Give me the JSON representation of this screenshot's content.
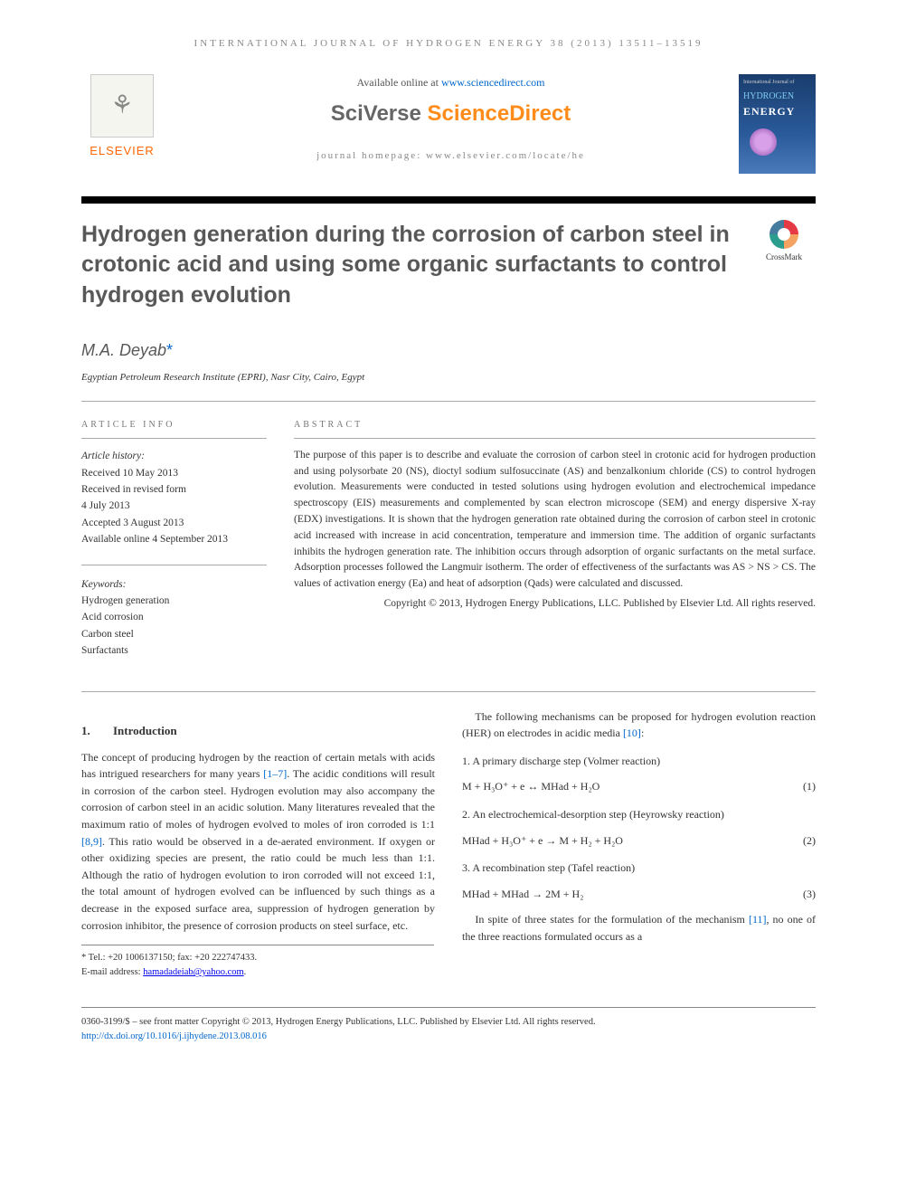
{
  "journal_header": "INTERNATIONAL JOURNAL OF HYDROGEN ENERGY 38 (2013) 13511–13519",
  "elsevier_brand": "ELSEVIER",
  "available_prefix": "Available online at ",
  "available_url": "www.sciencedirect.com",
  "sciverse": {
    "sv": "SciVerse ",
    "sd": "ScienceDirect"
  },
  "journal_homepage": "journal homepage: www.elsevier.com/locate/he",
  "journal_cover": {
    "top": "International Journal of",
    "title1": "HYDROGEN",
    "title2": "ENERGY"
  },
  "crossmark_label": "CrossMark",
  "title": "Hydrogen generation during the corrosion of carbon steel in crotonic acid and using some organic surfactants to control hydrogen evolution",
  "author": "M.A. Deyab",
  "author_marker": "*",
  "affiliation": "Egyptian Petroleum Research Institute (EPRI), Nasr City, Cairo, Egypt",
  "article_info_label": "ARTICLE INFO",
  "abstract_label": "ABSTRACT",
  "history_label": "Article history:",
  "history": {
    "received": "Received 10 May 2013",
    "revised": "Received in revised form",
    "revised_date": "4 July 2013",
    "accepted": "Accepted 3 August 2013",
    "online": "Available online 4 September 2013"
  },
  "keywords_label": "Keywords:",
  "keywords": [
    "Hydrogen generation",
    "Acid corrosion",
    "Carbon steel",
    "Surfactants"
  ],
  "abstract_text": "The purpose of this paper is to describe and evaluate the corrosion of carbon steel in crotonic acid for hydrogen production and using polysorbate 20 (NS), dioctyl sodium sulfosuccinate (AS) and benzalkonium chloride (CS) to control hydrogen evolution. Measurements were conducted in tested solutions using hydrogen evolution and electrochemical impedance spectroscopy (EIS) measurements and complemented by scan electron microscope (SEM) and energy dispersive X-ray (EDX) investigations. It is shown that the hydrogen generation rate obtained during the corrosion of carbon steel in crotonic acid increased with increase in acid concentration, temperature and immersion time. The addition of organic surfactants inhibits the hydrogen generation rate. The inhibition occurs through adsorption of organic surfactants on the metal surface. Adsorption processes followed the Langmuir isotherm. The order of effectiveness of the surfactants was AS > NS > CS. The values of activation energy (Ea) and heat of adsorption (Qads) were calculated and discussed.",
  "abstract_copyright": "Copyright © 2013, Hydrogen Energy Publications, LLC. Published by Elsevier Ltd. All rights reserved.",
  "intro": {
    "num": "1.",
    "title": "Introduction",
    "para1_a": "The concept of producing hydrogen by the reaction of certain metals with acids has intrigued researchers for many years ",
    "ref1": "[1–7]",
    "para1_b": ". The acidic conditions will result in corrosion of the carbon steel. Hydrogen evolution may also accompany the corrosion of carbon steel in an acidic solution. Many literatures revealed that the maximum ratio of moles of hydrogen evolved to moles of iron corroded is 1:1 ",
    "ref2": "[8,9]",
    "para1_c": ". This ratio would be observed in a de-aerated environment. If oxygen or other oxidizing species are present, the ratio could be much less than 1:1. Although the ratio of hydrogen evolution to iron corroded will not exceed 1:1, the total amount of hydrogen evolved can be influenced by such things as a decrease in the exposed surface area, suppression of hydrogen generation by corrosion inhibitor, the presence of corrosion products on steel surface, etc."
  },
  "col2": {
    "lead_a": "The following mechanisms can be proposed for hydrogen evolution reaction (HER) on electrodes in acidic media ",
    "lead_ref": "[10]",
    "lead_b": ":",
    "step1_label": "1. A primary discharge step (Volmer reaction)",
    "eq1": "M + H₃O⁺ + e ↔ MHad + H₂O",
    "eq1_num": "(1)",
    "step2_label": "2. An electrochemical-desorption step (Heyrowsky reaction)",
    "eq2": "MHad + H₃O⁺ + e → M + H₂ + H₂O",
    "eq2_num": "(2)",
    "step3_label": "3. A recombination step (Tafel reaction)",
    "eq3": "MHad + MHad → 2M + H₂",
    "eq3_num": "(3)",
    "closing_a": "In spite of three states for the formulation of the mechanism ",
    "closing_ref": "[11]",
    "closing_b": ", no one of the three reactions formulated occurs as a"
  },
  "footnote": {
    "tel": "* Tel.: +20 1006137150; fax: +20 222747433.",
    "email_label": "E-mail address: ",
    "email": "hamadadeiab@yahoo.com",
    "email_suffix": "."
  },
  "footer": {
    "line1": "0360-3199/$ – see front matter Copyright © 2013, Hydrogen Energy Publications, LLC. Published by Elsevier Ltd. All rights reserved.",
    "doi": "http://dx.doi.org/10.1016/j.ijhydene.2013.08.016"
  },
  "colors": {
    "link": "#0066cc",
    "elsevier_orange": "#ff6600",
    "sd_orange": "#ff8c1a",
    "title_gray": "#585858"
  }
}
